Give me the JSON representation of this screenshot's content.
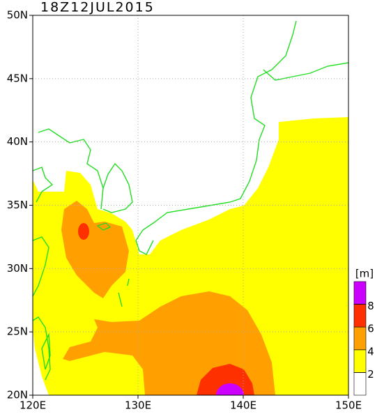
{
  "title": "18Z12JUL2015",
  "lonlim": [
    120,
    150
  ],
  "latlim": [
    20,
    50
  ],
  "lon_ticks": [
    {
      "value": 120,
      "label": "120E"
    },
    {
      "value": 130,
      "label": "130E"
    },
    {
      "value": 140,
      "label": "140E"
    },
    {
      "value": 150,
      "label": "150E"
    }
  ],
  "lat_ticks": [
    {
      "value": 20,
      "label": "20N"
    },
    {
      "value": 25,
      "label": "25N"
    },
    {
      "value": 30,
      "label": "30N"
    },
    {
      "value": 35,
      "label": "35N"
    },
    {
      "value": 40,
      "label": "40N"
    },
    {
      "value": 45,
      "label": "45N"
    },
    {
      "value": 50,
      "label": "50N"
    }
  ],
  "colorbar": {
    "unit": "[m]",
    "levels": [
      2,
      4,
      6,
      8
    ],
    "colors": [
      "#ffffff",
      "#ffff00",
      "#ffa000",
      "#ff3000",
      "#cc00ff"
    ]
  }
}
